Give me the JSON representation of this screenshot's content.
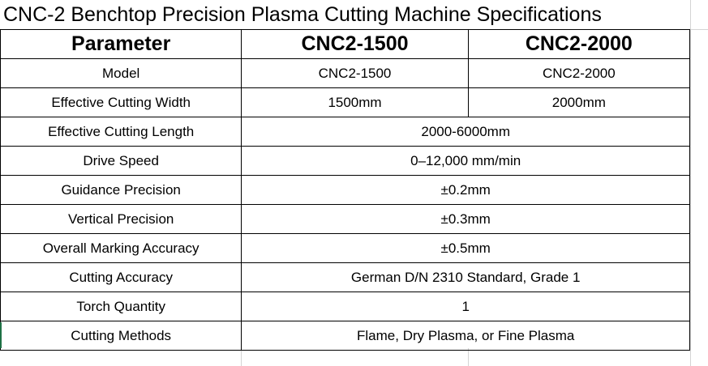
{
  "title": "CNC-2 Benchtop Precision Plasma Cutting Machine Specifications",
  "header": {
    "parameter": "Parameter",
    "col_a": "CNC2-1500",
    "col_b": "CNC2-2000"
  },
  "rows": [
    {
      "parameter": "Model",
      "a": "CNC2-1500",
      "b": "CNC2-2000"
    },
    {
      "parameter": "Effective Cutting Width",
      "a": "1500mm",
      "b": "2000mm"
    },
    {
      "parameter": "Effective Cutting Length",
      "value": "2000-6000mm"
    },
    {
      "parameter": "Drive Speed",
      "value": "0–12,000 mm/min"
    },
    {
      "parameter": "Guidance Precision",
      "value": "±0.2mm"
    },
    {
      "parameter": "Vertical Precision",
      "value": "±0.3mm"
    },
    {
      "parameter": "Overall Marking Accuracy",
      "value": "±0.5mm"
    },
    {
      "parameter": "Cutting Accuracy",
      "value": "German D/N 2310 Standard, Grade 1"
    },
    {
      "parameter": "Torch Quantity",
      "value": "1"
    },
    {
      "parameter": "Cutting Methods",
      "value": "Flame, Dry Plasma, or Fine Plasma"
    }
  ],
  "colors": {
    "border": "#000000",
    "gridline": "#d4d4d4",
    "selection": "#1e7145"
  }
}
